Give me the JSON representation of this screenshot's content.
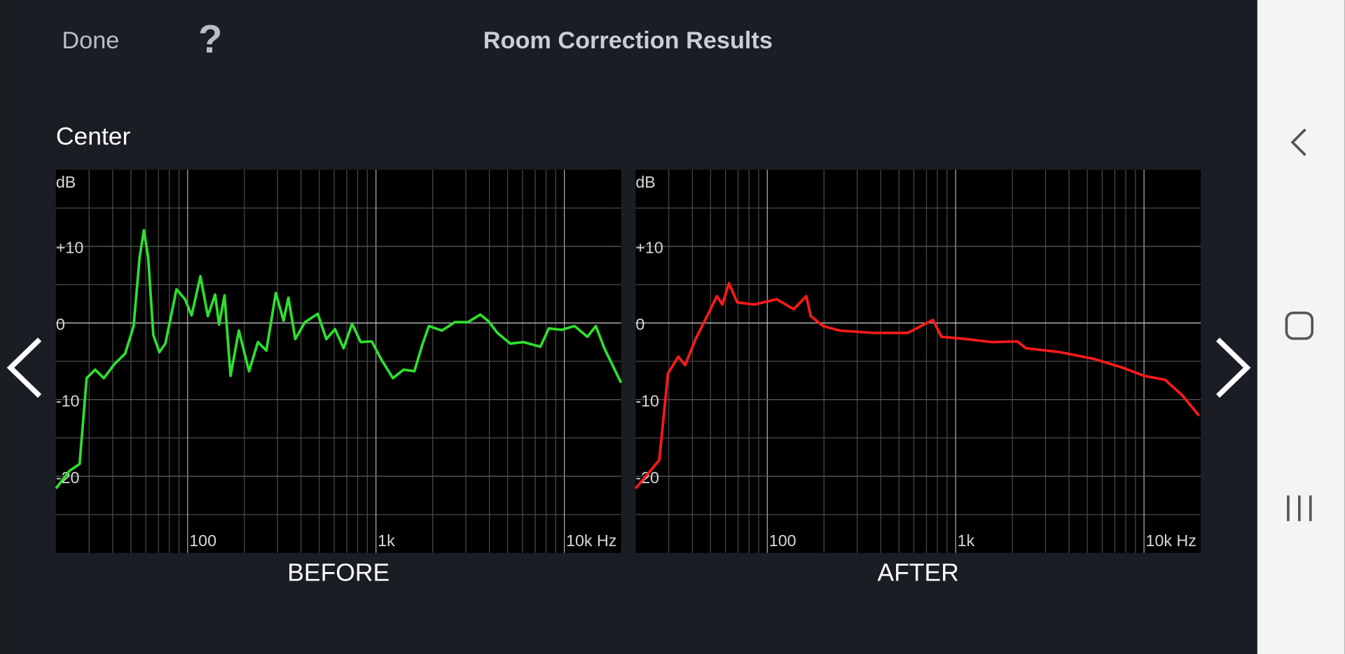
{
  "header": {
    "done": "Done",
    "help": "?",
    "title": "Room Correction Results"
  },
  "section": "Center",
  "chart_data": [
    {
      "type": "line",
      "title": "BEFORE",
      "y_label": "dB",
      "xscale": "log",
      "grid": true,
      "color": "#2ee02e",
      "xlim": [
        20,
        20000
      ],
      "ylim": [
        -30,
        20
      ],
      "xticks": [
        100,
        {
          "value": 1000,
          "label": "1k"
        },
        {
          "value": 10000,
          "label": "10k Hz"
        }
      ],
      "yticks": [
        {
          "value": 10,
          "label": "+10"
        },
        0,
        -10,
        -20
      ],
      "x": [
        20,
        23.6,
        26.7,
        29.1,
        32.3,
        35.9,
        41.1,
        46.6,
        51.7,
        55.6,
        58.6,
        61.8,
        65.8,
        70.8,
        76.2,
        87.3,
        96.9,
        105,
        117,
        128,
        140,
        147,
        157,
        169,
        187,
        212,
        236,
        262,
        294,
        323,
        343,
        373,
        420,
        491,
        545,
        606,
        673,
        747,
        830,
        950,
        1075,
        1230,
        1400,
        1600,
        1760,
        1910,
        2240,
        2620,
        3070,
        3580,
        3970,
        4410,
        5170,
        6060,
        7460,
        8270,
        9670,
        11330,
        13250,
        14700,
        16300,
        20000
      ],
      "values": [
        -21.6,
        -19.3,
        -18.4,
        -7.2,
        -6.1,
        -7.2,
        -5.3,
        -4.0,
        -0.4,
        8.5,
        12.1,
        8.5,
        -1.6,
        -3.8,
        -2.7,
        4.4,
        3.1,
        1.0,
        6.1,
        0.9,
        3.7,
        -0.2,
        3.6,
        -6.9,
        -1.0,
        -6.3,
        -2.5,
        -3.6,
        3.9,
        0.3,
        3.3,
        -2.1,
        0.1,
        1.2,
        -2.1,
        -0.8,
        -3.3,
        -0.1,
        -2.5,
        -2.4,
        -4.9,
        -7.2,
        -6.1,
        -6.3,
        -2.9,
        -0.4,
        -1.0,
        0.1,
        0.1,
        1.1,
        0.2,
        -1.3,
        -2.7,
        -2.5,
        -3.1,
        -0.7,
        -0.9,
        -0.4,
        -1.8,
        -0.4,
        -3.3,
        -7.8
      ]
    },
    {
      "type": "line",
      "title": "AFTER",
      "y_label": "dB",
      "xscale": "log",
      "grid": true,
      "color": "#ff1a1a",
      "xlim": [
        20,
        20000
      ],
      "ylim": [
        -30,
        20
      ],
      "xticks": [
        100,
        {
          "value": 1000,
          "label": "1k"
        },
        {
          "value": 10000,
          "label": "10k Hz"
        }
      ],
      "yticks": [
        {
          "value": 10,
          "label": "+10"
        },
        0,
        -10,
        -20
      ],
      "x": [
        20,
        26.7,
        29.7,
        33.7,
        36.6,
        41.6,
        48.6,
        54.0,
        57.7,
        62.6,
        69.2,
        85.2,
        112,
        138,
        161,
        170,
        198,
        242,
        366,
        556,
        757,
        840,
        1140,
        1560,
        2130,
        2360,
        3570,
        5440,
        7630,
        10000,
        12900,
        15900,
        19600
      ],
      "values": [
        -21.6,
        -17.9,
        -6.6,
        -4.4,
        -5.5,
        -2.1,
        1.2,
        3.5,
        2.4,
        5.2,
        2.7,
        2.4,
        3.1,
        1.8,
        3.5,
        0.9,
        -0.4,
        -1.0,
        -1.3,
        -1.3,
        0.4,
        -1.8,
        -2.1,
        -2.5,
        -2.4,
        -3.3,
        -3.8,
        -4.7,
        -5.8,
        -6.9,
        -7.4,
        -9.4,
        -12.1
      ]
    }
  ]
}
